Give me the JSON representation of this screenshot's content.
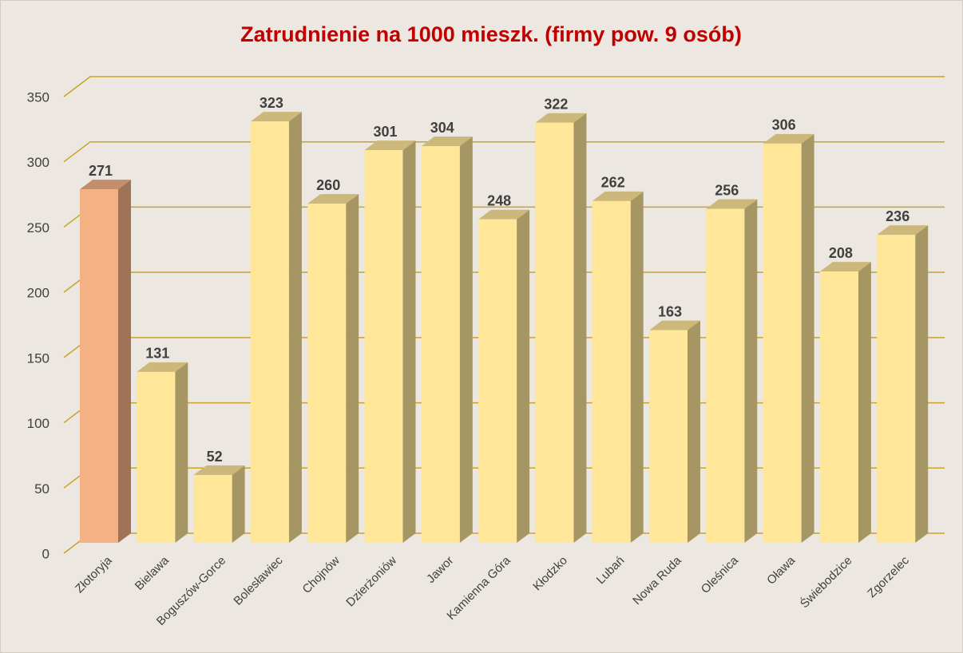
{
  "chart_data": {
    "type": "bar3d",
    "title": "Zatrudnienie na 1000 mieszk. (firmy pow. 9 osób)",
    "categories": [
      "Złotoryja",
      "Bielawa",
      "Boguszów-Gorce",
      "Bolesławiec",
      "Chojnów",
      "Dzierżoniów",
      "Jawor",
      "Kamienna Góra",
      "Kłodzko",
      "Lubań",
      "Nowa Ruda",
      "Oleśnica",
      "Oława",
      "Świebodzice",
      "Zgorzelec"
    ],
    "values": [
      271,
      131,
      52,
      323,
      260,
      301,
      304,
      248,
      322,
      262,
      163,
      256,
      306,
      208,
      236
    ],
    "colors": [
      "#f4b183",
      "#ffe699",
      "#ffe699",
      "#ffe699",
      "#ffe699",
      "#ffe699",
      "#ffe699",
      "#ffe699",
      "#ffe699",
      "#ffe699",
      "#ffe699",
      "#ffe699",
      "#ffe699",
      "#ffe699",
      "#ffe699"
    ],
    "ylim": [
      0,
      350
    ],
    "yticks": [
      0,
      50,
      100,
      150,
      200,
      250,
      300,
      350
    ],
    "grid": true
  }
}
